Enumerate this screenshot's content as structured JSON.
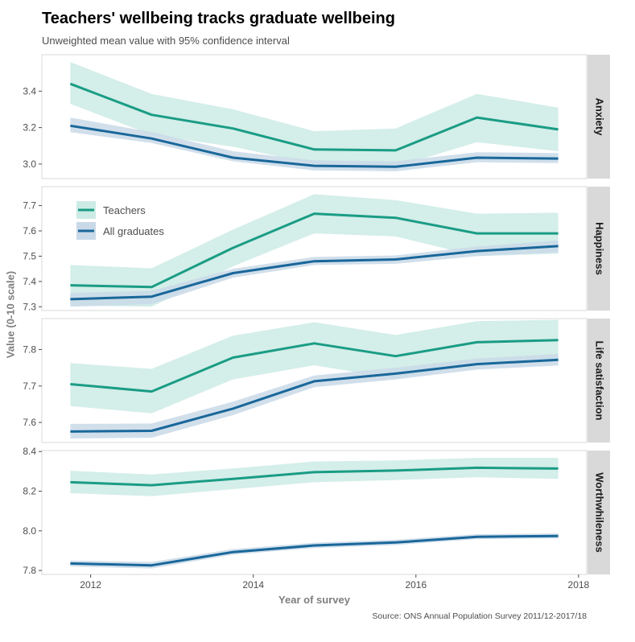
{
  "title": "Teachers' wellbeing tracks graduate wellbeing",
  "subtitle": "Unweighted mean value with 95% confidence interval",
  "caption": "Source: ONS Annual Population Survey 2011/12-2017/18",
  "chart_data": {
    "type": "line",
    "xlabel": "Year of survey",
    "ylabel": "Value (0-10 scale)",
    "xlim": [
      2011.4,
      2018.1
    ],
    "xticks": [
      2012,
      2014,
      2016,
      2018
    ],
    "legend_placement": "top-left (inside Happiness panel)",
    "colors": {
      "Teachers": "#1a9c85",
      "All graduates": "#19679a",
      "Teachers_band": "#cdebe5",
      "All graduates_band": "#c9d9e8"
    },
    "x": [
      2011.75,
      2012.75,
      2013.75,
      2014.75,
      2015.75,
      2016.75,
      2017.75
    ],
    "panels": [
      {
        "name": "Anxiety",
        "ylim": [
          2.92,
          3.6
        ],
        "yticks": [
          3.0,
          3.2,
          3.4
        ],
        "ytick_labels": [
          "3.0",
          "3.2",
          "3.4"
        ],
        "series": [
          {
            "name": "Teachers",
            "values": [
              3.44,
              3.27,
              3.195,
              3.08,
              3.075,
              3.255,
              3.19
            ],
            "lower": [
              3.33,
              3.16,
              3.095,
              3.0,
              2.985,
              3.12,
              3.07
            ],
            "upper": [
              3.56,
              3.385,
              3.3,
              3.18,
              3.195,
              3.385,
              3.31
            ]
          },
          {
            "name": "All graduates",
            "values": [
              3.21,
              3.14,
              3.035,
              2.99,
              2.985,
              3.035,
              3.03
            ],
            "lower": [
              3.175,
              3.115,
              3.015,
              2.965,
              2.96,
              3.01,
              3.005
            ],
            "upper": [
              3.255,
              3.175,
              3.07,
              3.02,
              3.015,
              3.065,
              3.06
            ]
          }
        ]
      },
      {
        "name": "Happiness",
        "ylim": [
          7.285,
          7.775
        ],
        "yticks": [
          7.3,
          7.4,
          7.5,
          7.6,
          7.7
        ],
        "ytick_labels": [
          "7.3",
          "7.4",
          "7.5",
          "7.6",
          "7.7"
        ],
        "series": [
          {
            "name": "Teachers",
            "values": [
              7.385,
              7.378,
              7.533,
              7.668,
              7.652,
              7.59,
              7.59
            ],
            "lower": [
              7.305,
              7.3,
              7.46,
              7.59,
              7.578,
              7.5,
              7.51
            ],
            "upper": [
              7.465,
              7.452,
              7.605,
              7.745,
              7.722,
              7.668,
              7.672
            ]
          },
          {
            "name": "All graduates",
            "values": [
              7.33,
              7.34,
              7.433,
              7.48,
              7.487,
              7.52,
              7.54
            ],
            "lower": [
              7.3,
              7.31,
              7.415,
              7.465,
              7.47,
              7.5,
              7.515
            ],
            "upper": [
              7.355,
              7.363,
              7.45,
              7.497,
              7.503,
              7.538,
              7.562
            ]
          }
        ]
      },
      {
        "name": "Life satisfaction",
        "ylim": [
          7.545,
          7.885
        ],
        "yticks": [
          7.6,
          7.7,
          7.8
        ],
        "ytick_labels": [
          "7.6",
          "7.7",
          "7.8"
        ],
        "series": [
          {
            "name": "Teachers",
            "values": [
              7.705,
              7.685,
              7.778,
              7.817,
              7.782,
              7.82,
              7.826
            ],
            "lower": [
              7.645,
              7.625,
              7.718,
              7.757,
              7.72,
              7.762,
              7.766
            ],
            "upper": [
              7.763,
              7.747,
              7.838,
              7.875,
              7.84,
              7.878,
              7.882
            ]
          },
          {
            "name": "All graduates",
            "values": [
              7.575,
              7.577,
              7.638,
              7.713,
              7.734,
              7.76,
              7.772
            ],
            "lower": [
              7.556,
              7.558,
              7.62,
              7.697,
              7.718,
              7.745,
              7.756
            ],
            "upper": [
              7.596,
              7.597,
              7.657,
              7.729,
              7.75,
              7.775,
              7.788
            ]
          }
        ]
      },
      {
        "name": "Worthwhileness",
        "ylim": [
          7.78,
          8.405
        ],
        "yticks": [
          7.8,
          8.0,
          8.2,
          8.4
        ],
        "ytick_labels": [
          "7.8",
          "8.0",
          "8.2",
          "8.4"
        ],
        "series": [
          {
            "name": "Teachers",
            "values": [
              8.245,
              8.23,
              8.262,
              8.296,
              8.304,
              8.318,
              8.314
            ],
            "lower": [
              8.19,
              8.175,
              8.21,
              8.245,
              8.256,
              8.27,
              8.262
            ],
            "upper": [
              8.303,
              8.284,
              8.315,
              8.35,
              8.355,
              8.368,
              8.368
            ]
          },
          {
            "name": "All graduates",
            "values": [
              7.835,
              7.826,
              7.893,
              7.926,
              7.941,
              7.97,
              7.974
            ],
            "lower": [
              7.82,
              7.81,
              7.88,
              7.913,
              7.928,
              7.958,
              7.962
            ],
            "upper": [
              7.85,
              7.843,
              7.908,
              7.94,
              7.955,
              7.983,
              7.987
            ]
          }
        ]
      }
    ]
  }
}
